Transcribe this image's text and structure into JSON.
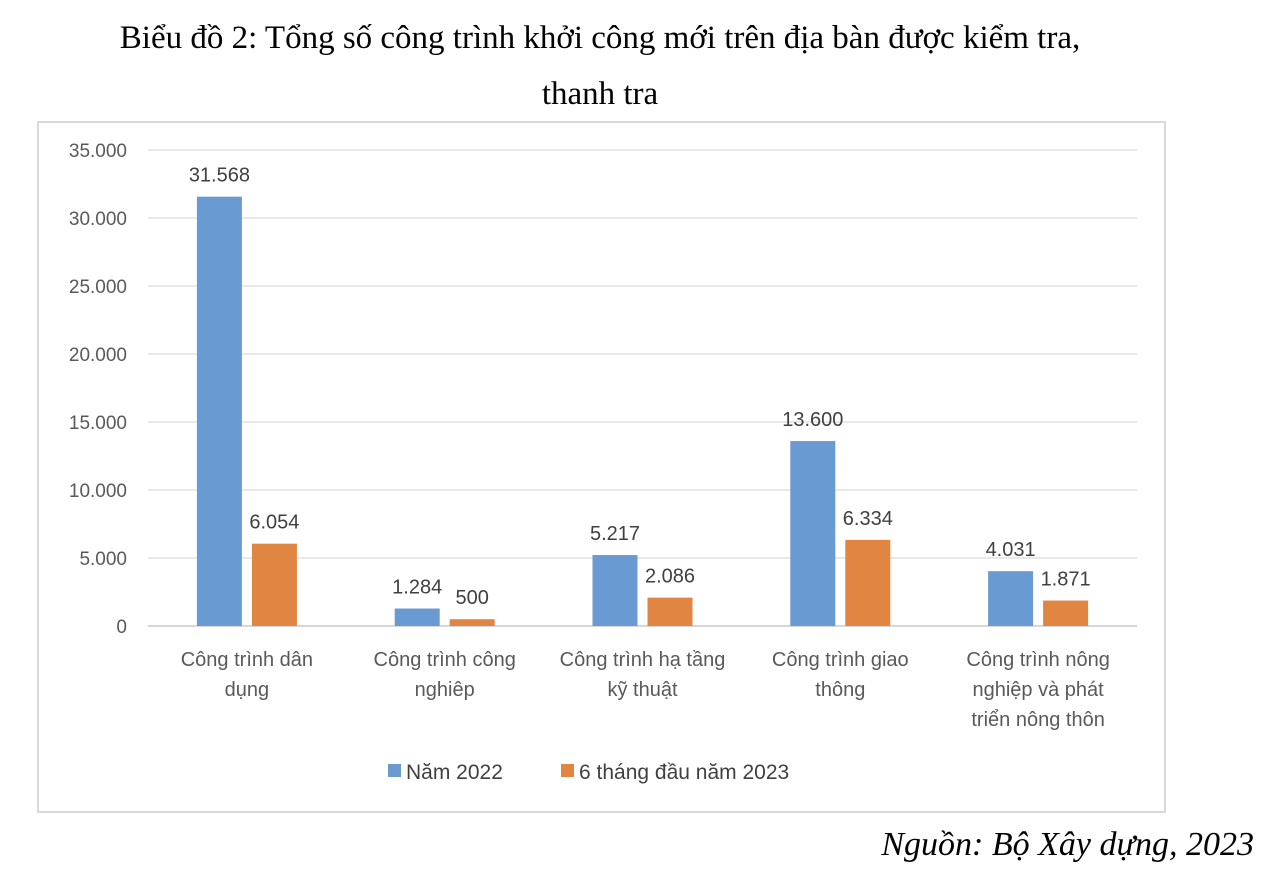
{
  "title_line1": "Biểu đồ 2: Tổng số công trình khởi công mới trên địa bàn được kiểm tra,",
  "title_line2": "thanh tra",
  "source": "Nguồn: Bộ Xây dựng, 2023",
  "chart_data": {
    "type": "bar",
    "categories": [
      [
        "Công trình dân",
        "dụng"
      ],
      [
        "Công trình công",
        "nghiêp"
      ],
      [
        "Công trình hạ tầng",
        "kỹ thuật"
      ],
      [
        "Công trình giao",
        "thông"
      ],
      [
        "Công trình nông",
        "nghiệp và phát",
        "triển nông thôn"
      ]
    ],
    "series": [
      {
        "name": "Năm 2022",
        "color": "#6a9ad2",
        "values": [
          31568,
          1284,
          5217,
          13600,
          4031
        ],
        "labels": [
          "31.568",
          "1.284",
          "5.217",
          "13.600",
          "4.031"
        ]
      },
      {
        "name": "6 tháng đầu năm 2023",
        "color": "#e08642",
        "values": [
          6054,
          500,
          2086,
          6334,
          1871
        ],
        "labels": [
          "6.054",
          "500",
          "2.086",
          "6.334",
          "1.871"
        ]
      }
    ],
    "ylim": [
      0,
      35000
    ],
    "yticks": [
      0,
      5000,
      10000,
      15000,
      20000,
      25000,
      30000,
      35000
    ],
    "ytick_labels": [
      "0",
      "5.000",
      "10.000",
      "15.000",
      "20.000",
      "25.000",
      "30.000",
      "35.000"
    ],
    "grid": true,
    "legend": "bottom"
  }
}
